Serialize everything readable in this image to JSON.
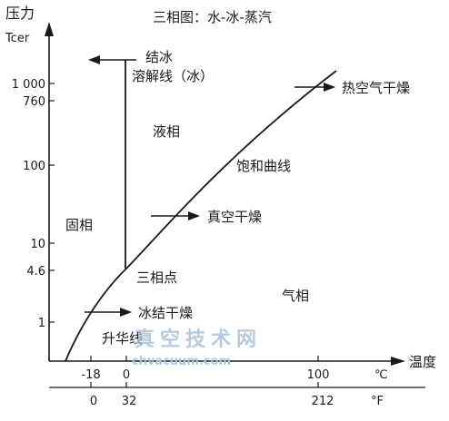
{
  "title": "三相图：水-冰-蒸汽",
  "y_axis": {
    "label_line1": "压力",
    "label_line2": "Tcer",
    "ticks": [
      "1 000",
      "760",
      "100",
      "10",
      "4.6",
      "1"
    ]
  },
  "x_axis": {
    "label": "温度",
    "celsius_ticks": [
      "-18",
      "0",
      "100"
    ],
    "celsius_unit": "℃",
    "fahrenheit_ticks": [
      "0",
      "32",
      "212"
    ],
    "fahrenheit_unit": "°F"
  },
  "labels": {
    "melting_line_1": "结冰",
    "melting_line_2": "溶解线（冰）",
    "liquid": "液相",
    "hot_air_drying": "热空气干燥",
    "saturation_curve": "饱和曲线",
    "solid": "固相",
    "vacuum_drying": "真空干燥",
    "triple_point": "三相点",
    "gas": "气相",
    "freeze_drying": "冰结干燥",
    "sublimation": "升华线"
  },
  "watermark": {
    "cn": "真空技术网",
    "url": "chvacuum.com"
  },
  "colors": {
    "ink": "#1a1a1a",
    "watermark": "#a9c3d8"
  }
}
